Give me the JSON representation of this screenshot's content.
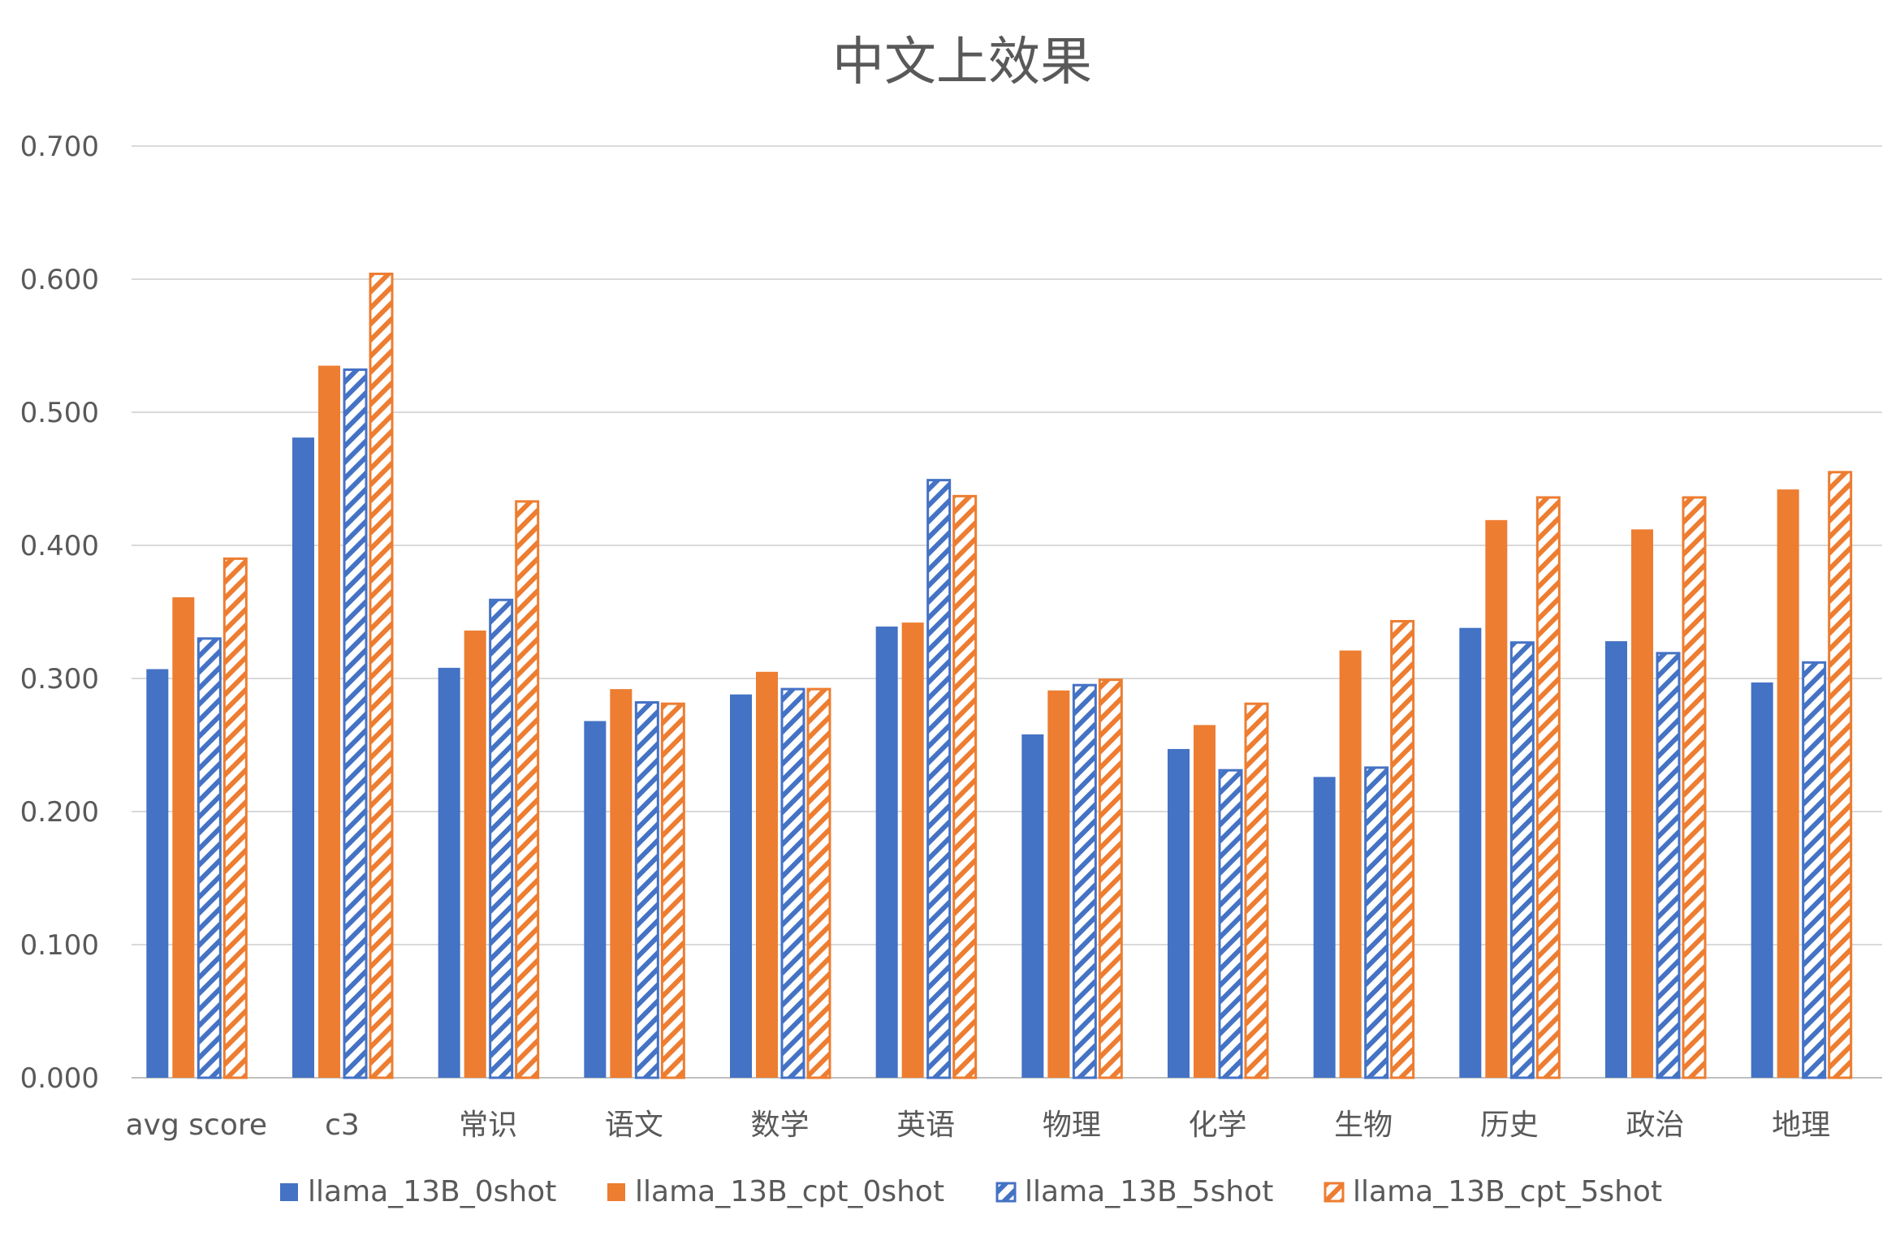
{
  "chart_data": {
    "type": "bar",
    "title": "中文上效果",
    "xlabel": "",
    "ylabel": "",
    "ylim": [
      0,
      0.7
    ],
    "yticks": [
      "0.000",
      "0.100",
      "0.200",
      "0.300",
      "0.400",
      "0.500",
      "0.600",
      "0.700"
    ],
    "grid": true,
    "legend_position": "bottom",
    "categories": [
      "avg score",
      "c3",
      "常识",
      "语文",
      "数学",
      "英语",
      "物理",
      "化学",
      "生物",
      "历史",
      "政治",
      "地理"
    ],
    "series": [
      {
        "name": "llama_13B_0shot",
        "color": "#4472C4",
        "pattern": "solid",
        "values": [
          0.307,
          0.481,
          0.308,
          0.268,
          0.288,
          0.339,
          0.258,
          0.247,
          0.226,
          0.338,
          0.328,
          0.297
        ]
      },
      {
        "name": "llama_13B_cpt_0shot",
        "color": "#ED7D31",
        "pattern": "solid",
        "values": [
          0.361,
          0.535,
          0.336,
          0.292,
          0.305,
          0.342,
          0.291,
          0.265,
          0.321,
          0.419,
          0.412,
          0.442
        ]
      },
      {
        "name": "llama_13B_5shot",
        "color": "#4472C4",
        "pattern": "hatched",
        "values": [
          0.33,
          0.532,
          0.359,
          0.282,
          0.292,
          0.449,
          0.295,
          0.231,
          0.233,
          0.327,
          0.319,
          0.312
        ]
      },
      {
        "name": "llama_13B_cpt_5shot",
        "color": "#ED7D31",
        "pattern": "hatched",
        "values": [
          0.39,
          0.604,
          0.433,
          0.281,
          0.292,
          0.437,
          0.299,
          0.281,
          0.343,
          0.436,
          0.436,
          0.455
        ]
      }
    ]
  }
}
